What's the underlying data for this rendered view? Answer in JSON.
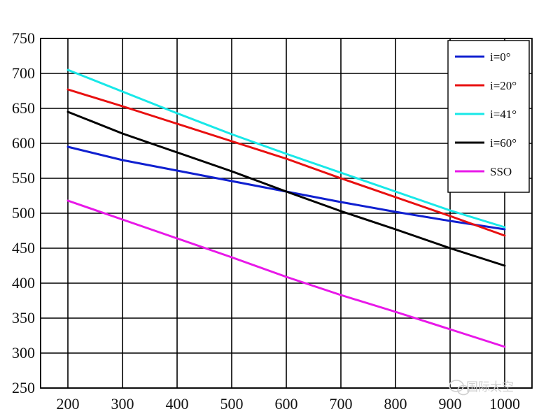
{
  "chart_data": {
    "type": "line",
    "x": [
      200,
      300,
      400,
      500,
      600,
      700,
      800,
      900,
      1000
    ],
    "xlim": [
      150,
      1050
    ],
    "ylim": [
      250,
      750
    ],
    "xticks": [
      "200",
      "300",
      "400",
      "500",
      "600",
      "700",
      "800",
      "900",
      "1000"
    ],
    "yticks": [
      "250",
      "300",
      "350",
      "400",
      "450",
      "500",
      "550",
      "600",
      "650",
      "700",
      "750"
    ],
    "grid": true,
    "legend_position": "top-right",
    "series": [
      {
        "name": "i=0°",
        "color": "#1020d0",
        "values": [
          595,
          576,
          561,
          546,
          531,
          516,
          502,
          489,
          477
        ]
      },
      {
        "name": "i=20°",
        "color": "#e81010",
        "values": [
          677,
          653,
          628,
          603,
          578,
          550,
          523,
          496,
          468
        ]
      },
      {
        "name": "i=41°",
        "color": "#18e8e8",
        "values": [
          705,
          674,
          643,
          613,
          585,
          558,
          531,
          504,
          480
        ]
      },
      {
        "name": "i=60°",
        "color": "#000000",
        "values": [
          645,
          614,
          587,
          560,
          531,
          503,
          477,
          450,
          425
        ]
      },
      {
        "name": "SSO",
        "color": "#e818e8",
        "values": [
          518,
          491,
          464,
          437,
          409,
          383,
          359,
          334,
          309
        ]
      }
    ]
  },
  "watermark": {
    "brand": "国际太空",
    "icon": "wechat-icon"
  }
}
